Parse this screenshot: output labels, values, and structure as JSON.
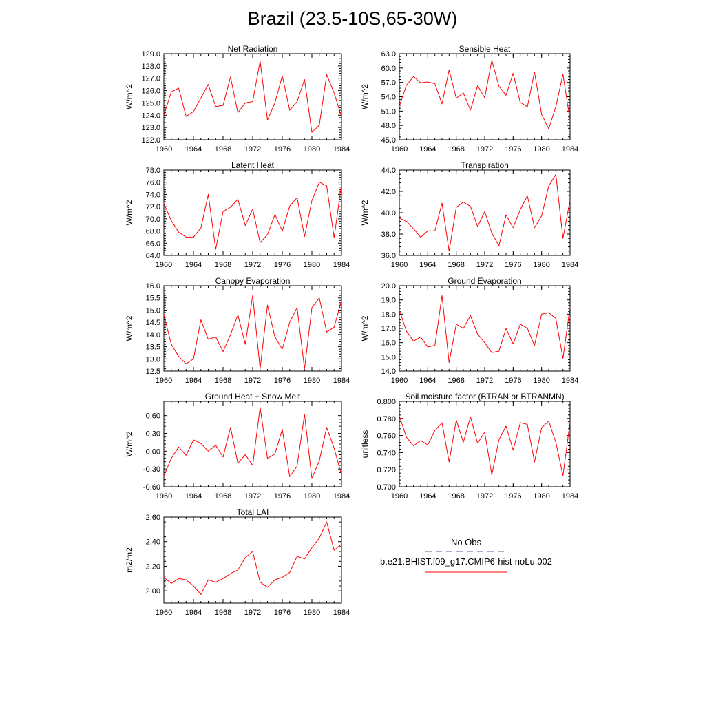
{
  "figure": {
    "title": "Brazil (23.5-10S,65-30W)"
  },
  "legend": {
    "entries": [
      {
        "label": "No Obs",
        "color": "#5a5a9a",
        "style": "dashed"
      },
      {
        "label": "b.e21.BHIST.f09_g17.CMIP6-hist-noLu.002",
        "color": "#ff0000",
        "style": "solid"
      }
    ]
  },
  "colors": {
    "series": "#ff0000",
    "axis": "#000000"
  },
  "chart_data": [
    {
      "type": "line",
      "title": "Net Radiation",
      "xlabel": "",
      "ylabel": "W/m^2",
      "xlim": [
        1960,
        1984
      ],
      "ylim": [
        122.0,
        129.0
      ],
      "yticks": [
        122.0,
        123.0,
        124.0,
        125.0,
        126.0,
        127.0,
        128.0,
        129.0
      ],
      "ytick_labels": [
        "122.0",
        "123.0",
        "124.0",
        "125.0",
        "126.0",
        "127.0",
        "128.0",
        "129.0"
      ],
      "xticks": [
        1960,
        1964,
        1968,
        1972,
        1976,
        1980,
        1984
      ],
      "xtick_labels": [
        "1960",
        "1964",
        "1968",
        "1972",
        "1976",
        "1980",
        "1984"
      ],
      "x": [
        1960,
        1961,
        1962,
        1963,
        1964,
        1965,
        1966,
        1967,
        1968,
        1969,
        1970,
        1971,
        1972,
        1973,
        1974,
        1975,
        1976,
        1977,
        1978,
        1979,
        1980,
        1981,
        1982,
        1983,
        1984
      ],
      "series": [
        {
          "values": [
            124.0,
            125.9,
            126.2,
            123.9,
            124.3,
            125.4,
            126.5,
            124.7,
            124.8,
            127.1,
            124.2,
            125.0,
            125.1,
            128.4,
            123.6,
            125.0,
            127.2,
            124.4,
            125.1,
            126.9,
            122.6,
            123.2,
            127.3,
            125.8,
            123.9
          ]
        }
      ]
    },
    {
      "type": "line",
      "title": "Sensible Heat",
      "xlabel": "",
      "ylabel": "W/m^2",
      "xlim": [
        1960,
        1984
      ],
      "ylim": [
        45.0,
        63.0
      ],
      "yticks": [
        45.0,
        48.0,
        51.0,
        54.0,
        57.0,
        60.0,
        63.0
      ],
      "ytick_labels": [
        "45.0",
        "48.0",
        "51.0",
        "54.0",
        "57.0",
        "60.0",
        "63.0"
      ],
      "xticks": [
        1960,
        1964,
        1968,
        1972,
        1976,
        1980,
        1984
      ],
      "xtick_labels": [
        "1960",
        "1964",
        "1968",
        "1972",
        "1976",
        "1980",
        "1984"
      ],
      "x": [
        1960,
        1961,
        1962,
        1963,
        1964,
        1965,
        1966,
        1967,
        1968,
        1969,
        1970,
        1971,
        1972,
        1973,
        1974,
        1975,
        1976,
        1977,
        1978,
        1979,
        1980,
        1981,
        1982,
        1983,
        1984
      ],
      "series": [
        {
          "values": [
            52.0,
            56.4,
            58.2,
            56.9,
            57.1,
            56.7,
            52.5,
            59.6,
            53.7,
            54.8,
            51.2,
            56.3,
            53.8,
            61.6,
            56.2,
            54.3,
            58.9,
            52.8,
            51.9,
            59.2,
            50.3,
            47.3,
            51.9,
            58.7,
            49.0
          ]
        }
      ]
    },
    {
      "type": "line",
      "title": "Latent Heat",
      "xlabel": "",
      "ylabel": "W/m^2",
      "xlim": [
        1960,
        1984
      ],
      "ylim": [
        64.0,
        78.0
      ],
      "yticks": [
        64.0,
        66.0,
        68.0,
        70.0,
        72.0,
        74.0,
        76.0,
        78.0
      ],
      "ytick_labels": [
        "64.0",
        "66.0",
        "68.0",
        "70.0",
        "72.0",
        "74.0",
        "76.0",
        "78.0"
      ],
      "xticks": [
        1960,
        1964,
        1968,
        1972,
        1976,
        1980,
        1984
      ],
      "xtick_labels": [
        "1960",
        "1964",
        "1968",
        "1972",
        "1976",
        "1980",
        "1984"
      ],
      "x": [
        1960,
        1961,
        1962,
        1963,
        1964,
        1965,
        1966,
        1967,
        1968,
        1969,
        1970,
        1971,
        1972,
        1973,
        1974,
        1975,
        1976,
        1977,
        1978,
        1979,
        1980,
        1981,
        1982,
        1983,
        1984
      ],
      "series": [
        {
          "values": [
            72.5,
            69.7,
            67.8,
            67.0,
            67.0,
            68.5,
            74.0,
            65.0,
            71.2,
            71.9,
            73.2,
            68.9,
            71.6,
            66.1,
            67.4,
            70.7,
            68.0,
            72.1,
            73.5,
            67.1,
            73.0,
            76.0,
            75.4,
            66.9,
            75.7
          ]
        }
      ]
    },
    {
      "type": "line",
      "title": "Transpiration",
      "xlabel": "",
      "ylabel": "W/m^2",
      "xlim": [
        1960,
        1984
      ],
      "ylim": [
        36.0,
        44.0
      ],
      "yticks": [
        36.0,
        38.0,
        40.0,
        42.0,
        44.0
      ],
      "ytick_labels": [
        "36.0",
        "38.0",
        "40.0",
        "42.0",
        "44.0"
      ],
      "xticks": [
        1960,
        1964,
        1968,
        1972,
        1976,
        1980,
        1984
      ],
      "xtick_labels": [
        "1960",
        "1964",
        "1968",
        "1972",
        "1976",
        "1980",
        "1984"
      ],
      "x": [
        1960,
        1961,
        1962,
        1963,
        1964,
        1965,
        1966,
        1967,
        1968,
        1969,
        1970,
        1971,
        1972,
        1973,
        1974,
        1975,
        1976,
        1977,
        1978,
        1979,
        1980,
        1981,
        1982,
        1983,
        1984
      ],
      "series": [
        {
          "values": [
            39.5,
            39.2,
            38.5,
            37.7,
            38.3,
            38.3,
            40.9,
            36.4,
            40.5,
            41.0,
            40.6,
            38.7,
            40.1,
            38.1,
            36.9,
            39.8,
            38.6,
            40.3,
            41.6,
            38.6,
            39.7,
            42.5,
            43.6,
            37.6,
            41.2
          ]
        }
      ]
    },
    {
      "type": "line",
      "title": "Canopy Evaporation",
      "xlabel": "",
      "ylabel": "W/m^2",
      "xlim": [
        1960,
        1984
      ],
      "ylim": [
        12.5,
        16.0
      ],
      "yticks": [
        12.5,
        13.0,
        13.5,
        14.0,
        14.5,
        15.0,
        15.5,
        16.0
      ],
      "ytick_labels": [
        "12.5",
        "13.0",
        "13.5",
        "14.0",
        "14.5",
        "15.0",
        "15.5",
        "16.0"
      ],
      "xticks": [
        1960,
        1964,
        1968,
        1972,
        1976,
        1980,
        1984
      ],
      "xtick_labels": [
        "1960",
        "1964",
        "1968",
        "1972",
        "1976",
        "1980",
        "1984"
      ],
      "x": [
        1960,
        1961,
        1962,
        1963,
        1964,
        1965,
        1966,
        1967,
        1968,
        1969,
        1970,
        1971,
        1972,
        1973,
        1974,
        1975,
        1976,
        1977,
        1978,
        1979,
        1980,
        1981,
        1982,
        1983,
        1984
      ],
      "series": [
        {
          "values": [
            14.8,
            13.6,
            13.1,
            12.8,
            13.0,
            14.6,
            13.8,
            13.9,
            13.3,
            14.0,
            14.8,
            13.6,
            15.6,
            12.6,
            15.2,
            13.9,
            13.4,
            14.5,
            15.1,
            12.6,
            15.1,
            15.5,
            14.1,
            14.3,
            15.4
          ]
        }
      ]
    },
    {
      "type": "line",
      "title": "Ground Evaporation",
      "xlabel": "",
      "ylabel": "W/m^2",
      "xlim": [
        1960,
        1984
      ],
      "ylim": [
        14.0,
        20.0
      ],
      "yticks": [
        14.0,
        15.0,
        16.0,
        17.0,
        18.0,
        19.0,
        20.0
      ],
      "ytick_labels": [
        "14.0",
        "15.0",
        "16.0",
        "17.0",
        "18.0",
        "19.0",
        "20.0"
      ],
      "xticks": [
        1960,
        1964,
        1968,
        1972,
        1976,
        1980,
        1984
      ],
      "xtick_labels": [
        "1960",
        "1964",
        "1968",
        "1972",
        "1976",
        "1980",
        "1984"
      ],
      "x": [
        1960,
        1961,
        1962,
        1963,
        1964,
        1965,
        1966,
        1967,
        1968,
        1969,
        1970,
        1971,
        1972,
        1973,
        1974,
        1975,
        1976,
        1977,
        1978,
        1979,
        1980,
        1981,
        1982,
        1983,
        1984
      ],
      "series": [
        {
          "values": [
            18.3,
            16.8,
            16.1,
            16.4,
            15.7,
            15.8,
            19.3,
            14.6,
            17.3,
            17.0,
            17.9,
            16.6,
            16.0,
            15.3,
            15.4,
            17.0,
            15.9,
            17.3,
            17.0,
            15.8,
            18.0,
            18.1,
            17.7,
            14.9,
            18.5
          ]
        }
      ]
    },
    {
      "type": "line",
      "title": "Ground Heat + Snow Melt",
      "xlabel": "",
      "ylabel": "W/m^2",
      "xlim": [
        1960,
        1984
      ],
      "ylim": [
        -0.6,
        0.84
      ],
      "yticks": [
        -0.6,
        -0.3,
        0.0,
        0.3,
        0.6
      ],
      "ytick_labels": [
        "-0.60",
        "-0.30",
        "0.00",
        "0.30",
        "0.60"
      ],
      "xticks": [
        1960,
        1964,
        1968,
        1972,
        1976,
        1980,
        1984
      ],
      "xtick_labels": [
        "1960",
        "1964",
        "1968",
        "1972",
        "1976",
        "1980",
        "1984"
      ],
      "x": [
        1960,
        1961,
        1962,
        1963,
        1964,
        1965,
        1966,
        1967,
        1968,
        1969,
        1970,
        1971,
        1972,
        1973,
        1974,
        1975,
        1976,
        1977,
        1978,
        1979,
        1980,
        1981,
        1982,
        1983,
        1984
      ],
      "series": [
        {
          "values": [
            -0.42,
            -0.12,
            0.07,
            -0.07,
            0.19,
            0.13,
            0.0,
            0.1,
            -0.1,
            0.4,
            -0.2,
            -0.06,
            -0.24,
            0.74,
            -0.12,
            -0.05,
            0.37,
            -0.43,
            -0.25,
            0.62,
            -0.46,
            -0.16,
            0.4,
            0.05,
            -0.4
          ]
        }
      ]
    },
    {
      "type": "line",
      "title": "Soil moisture factor (BTRAN or BTRANMN)",
      "xlabel": "",
      "ylabel": "unitless",
      "xlim": [
        1960,
        1984
      ],
      "ylim": [
        0.7,
        0.8
      ],
      "yticks": [
        0.7,
        0.72,
        0.74,
        0.76,
        0.78,
        0.8
      ],
      "ytick_labels": [
        "0.700",
        "0.720",
        "0.740",
        "0.760",
        "0.780",
        "0.800"
      ],
      "xticks": [
        1960,
        1964,
        1968,
        1972,
        1976,
        1980,
        1984
      ],
      "xtick_labels": [
        "1960",
        "1964",
        "1968",
        "1972",
        "1976",
        "1980",
        "1984"
      ],
      "x": [
        1960,
        1961,
        1962,
        1963,
        1964,
        1965,
        1966,
        1967,
        1968,
        1969,
        1970,
        1971,
        1972,
        1973,
        1974,
        1975,
        1976,
        1977,
        1978,
        1979,
        1980,
        1981,
        1982,
        1983,
        1984
      ],
      "series": [
        {
          "values": [
            0.783,
            0.758,
            0.748,
            0.754,
            0.749,
            0.766,
            0.775,
            0.729,
            0.778,
            0.752,
            0.782,
            0.751,
            0.764,
            0.714,
            0.755,
            0.771,
            0.743,
            0.775,
            0.773,
            0.729,
            0.769,
            0.777,
            0.752,
            0.713,
            0.776
          ]
        }
      ]
    },
    {
      "type": "line",
      "title": "Total LAI",
      "xlabel": "",
      "ylabel": "m2/m2",
      "xlim": [
        1960,
        1984
      ],
      "ylim": [
        1.9,
        2.6
      ],
      "yticks": [
        2.0,
        2.2,
        2.4,
        2.6
      ],
      "ytick_labels": [
        "2.00",
        "2.20",
        "2.40",
        "2.60"
      ],
      "xticks": [
        1960,
        1964,
        1968,
        1972,
        1976,
        1980,
        1984
      ],
      "xtick_labels": [
        "1960",
        "1964",
        "1968",
        "1972",
        "1976",
        "1980",
        "1984"
      ],
      "x": [
        1960,
        1961,
        1962,
        1963,
        1964,
        1965,
        1966,
        1967,
        1968,
        1969,
        1970,
        1971,
        1972,
        1973,
        1974,
        1975,
        1976,
        1977,
        1978,
        1979,
        1980,
        1981,
        1982,
        1983,
        1984
      ],
      "series": [
        {
          "values": [
            2.11,
            2.06,
            2.1,
            2.09,
            2.04,
            1.97,
            2.09,
            2.07,
            2.1,
            2.14,
            2.17,
            2.27,
            2.32,
            2.07,
            2.03,
            2.09,
            2.11,
            2.15,
            2.28,
            2.26,
            2.35,
            2.43,
            2.56,
            2.33,
            2.38
          ]
        }
      ]
    }
  ]
}
